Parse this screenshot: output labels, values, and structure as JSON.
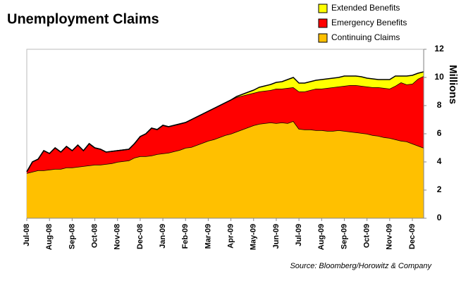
{
  "chart_data": {
    "type": "stacked_area",
    "title": "Unemployment Claims",
    "y_label": "Millions",
    "source": "Source: Bloomberg/Horowitz & Company",
    "categories": [
      "Jul-08",
      null,
      null,
      null,
      "Aug-08",
      null,
      null,
      null,
      "Sep-08",
      null,
      null,
      null,
      "Oct-08",
      null,
      null,
      null,
      "Nov-08",
      null,
      null,
      null,
      "Dec-08",
      null,
      null,
      null,
      "Jan-09",
      null,
      null,
      null,
      "Feb-09",
      null,
      null,
      null,
      "Mar-09",
      null,
      null,
      null,
      "Apr-09",
      null,
      null,
      null,
      "May-09",
      null,
      null,
      null,
      "Jun-09",
      null,
      null,
      null,
      "Jul-09",
      null,
      null,
      null,
      "Aug-09",
      null,
      null,
      null,
      "Sep-09",
      null,
      null,
      null,
      "Oct-09",
      null,
      null,
      null,
      "Nov-09",
      null,
      null,
      null,
      "Dec-09",
      null,
      null
    ],
    "series": [
      {
        "name": "Continuing Claims",
        "color": "#ffc000",
        "values": [
          3.2,
          3.3,
          3.4,
          3.4,
          3.45,
          3.5,
          3.5,
          3.6,
          3.6,
          3.65,
          3.7,
          3.75,
          3.8,
          3.8,
          3.85,
          3.9,
          4.0,
          4.05,
          4.1,
          4.3,
          4.4,
          4.4,
          4.45,
          4.55,
          4.6,
          4.65,
          4.75,
          4.85,
          5.0,
          5.05,
          5.2,
          5.35,
          5.5,
          5.6,
          5.75,
          5.9,
          6.0,
          6.15,
          6.3,
          6.45,
          6.6,
          6.7,
          6.75,
          6.8,
          6.75,
          6.8,
          6.75,
          6.9,
          6.35,
          6.3,
          6.3,
          6.25,
          6.25,
          6.2,
          6.2,
          6.25,
          6.2,
          6.15,
          6.1,
          6.05,
          6.0,
          5.9,
          5.85,
          5.75,
          5.7,
          5.6,
          5.5,
          5.45,
          5.3,
          5.15,
          5.0
        ]
      },
      {
        "name": "Emergency Benefits",
        "color": "#ff0000",
        "values": [
          0.1,
          0.7,
          0.8,
          1.4,
          1.15,
          1.5,
          1.2,
          1.5,
          1.2,
          1.55,
          1.1,
          1.55,
          1.2,
          1.1,
          0.85,
          0.85,
          0.8,
          0.8,
          0.8,
          1.0,
          1.4,
          1.6,
          1.95,
          1.75,
          2.0,
          1.85,
          1.85,
          1.85,
          1.8,
          1.95,
          2.0,
          2.05,
          2.1,
          2.2,
          2.25,
          2.3,
          2.4,
          2.45,
          2.4,
          2.35,
          2.3,
          2.3,
          2.3,
          2.3,
          2.45,
          2.4,
          2.5,
          2.4,
          2.65,
          2.7,
          2.8,
          2.95,
          2.95,
          3.05,
          3.1,
          3.1,
          3.2,
          3.3,
          3.35,
          3.35,
          3.35,
          3.4,
          3.45,
          3.5,
          3.5,
          3.8,
          4.15,
          4.05,
          4.25,
          4.75,
          5.1
        ]
      },
      {
        "name": "Extended Benefits",
        "color": "#ffff00",
        "values": [
          0,
          0,
          0,
          0,
          0,
          0,
          0,
          0,
          0,
          0,
          0,
          0,
          0,
          0,
          0,
          0,
          0,
          0,
          0,
          0,
          0,
          0,
          0,
          0,
          0,
          0,
          0,
          0,
          0,
          0,
          0,
          0,
          0,
          0,
          0,
          0,
          0,
          0.05,
          0.1,
          0.15,
          0.2,
          0.3,
          0.35,
          0.4,
          0.45,
          0.5,
          0.6,
          0.7,
          0.6,
          0.6,
          0.6,
          0.6,
          0.65,
          0.65,
          0.65,
          0.65,
          0.7,
          0.65,
          0.65,
          0.65,
          0.6,
          0.6,
          0.55,
          0.6,
          0.65,
          0.7,
          0.45,
          0.6,
          0.6,
          0.4,
          0.3
        ]
      }
    ],
    "ylim": [
      0,
      12
    ],
    "yticks": [
      0,
      2,
      4,
      6,
      8,
      10,
      12
    ],
    "y_axis_side": "right"
  }
}
